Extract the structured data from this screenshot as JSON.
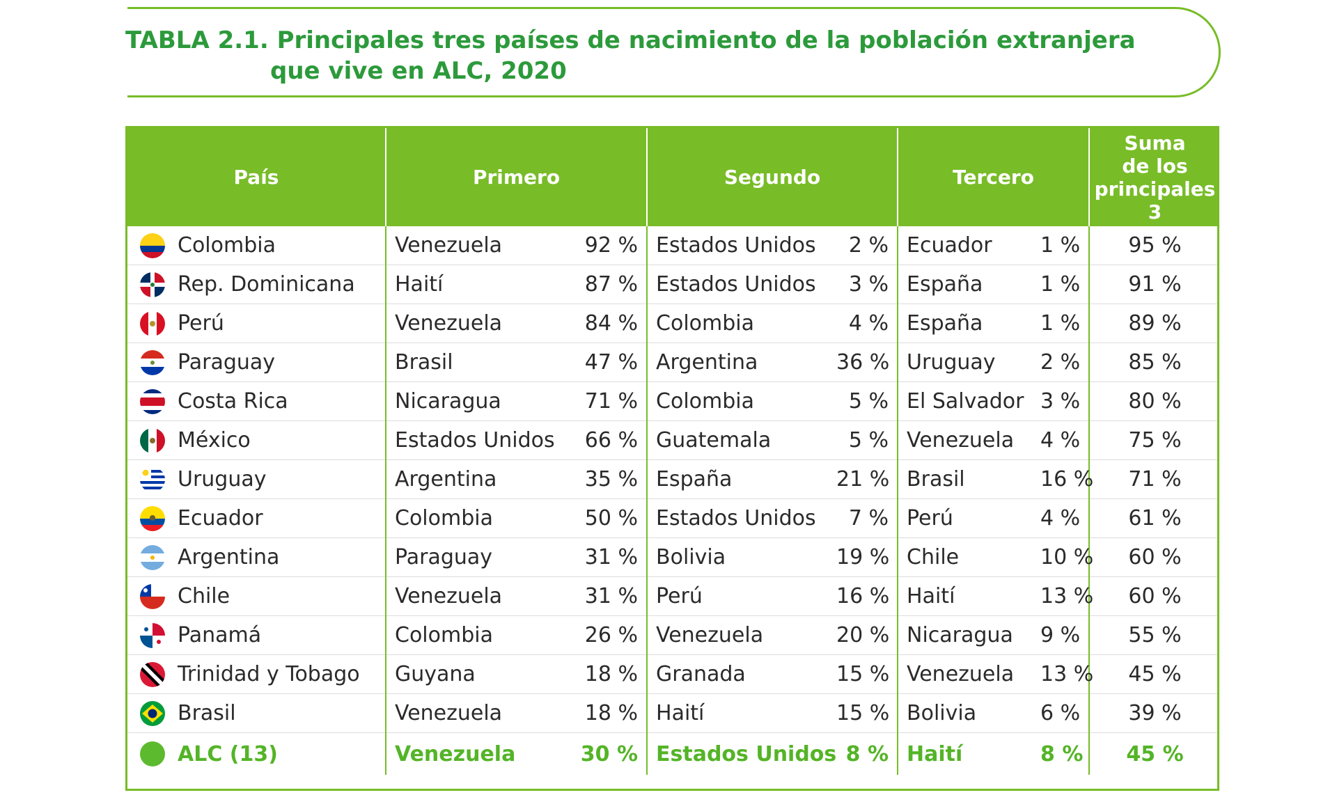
{
  "title": {
    "line1": "TABLA 2.1. Principales tres países de nacimiento de la población extranjera",
    "line2": "que vive en ALC, 2020"
  },
  "table": {
    "headers": {
      "country": "País",
      "first": "Primero",
      "second": "Segundo",
      "third": "Tercero",
      "sum": [
        "Suma",
        "de los",
        "principales",
        "3"
      ]
    },
    "rows": [
      {
        "country": "Colombia",
        "flag": "colombia-flag-icon",
        "c1": "Venezuela",
        "p1": "92 %",
        "c2": "Estados Unidos",
        "p2": "2 %",
        "c3": "Ecuador",
        "p3": "1 %",
        "sum": "95 %"
      },
      {
        "country": "Rep. Dominicana",
        "flag": "dominican-republic-flag-icon",
        "c1": "Haití",
        "p1": "87 %",
        "c2": "Estados Unidos",
        "p2": "3 %",
        "c3": "España",
        "p3": "1 %",
        "sum": "91 %"
      },
      {
        "country": "Perú",
        "flag": "peru-flag-icon",
        "c1": "Venezuela",
        "p1": "84 %",
        "c2": "Colombia",
        "p2": "4 %",
        "c3": "España",
        "p3": "1 %",
        "sum": "89 %"
      },
      {
        "country": "Paraguay",
        "flag": "paraguay-flag-icon",
        "c1": "Brasil",
        "p1": "47 %",
        "c2": "Argentina",
        "p2": "36 %",
        "c3": "Uruguay",
        "p3": "2 %",
        "sum": "85 %"
      },
      {
        "country": "Costa Rica",
        "flag": "costa-rica-flag-icon",
        "c1": "Nicaragua",
        "p1": "71 %",
        "c2": "Colombia",
        "p2": "5 %",
        "c3": "El Salvador",
        "p3": "3 %",
        "sum": "80 %"
      },
      {
        "country": "México",
        "flag": "mexico-flag-icon",
        "c1": "Estados Unidos",
        "p1": "66 %",
        "c2": "Guatemala",
        "p2": "5 %",
        "c3": "Venezuela",
        "p3": "4 %",
        "sum": "75 %"
      },
      {
        "country": "Uruguay",
        "flag": "uruguay-flag-icon",
        "c1": "Argentina",
        "p1": "35 %",
        "c2": "España",
        "p2": "21 %",
        "c3": "Brasil",
        "p3": "16 %",
        "sum": "71 %"
      },
      {
        "country": "Ecuador",
        "flag": "ecuador-flag-icon",
        "c1": "Colombia",
        "p1": "50 %",
        "c2": "Estados Unidos",
        "p2": "7 %",
        "c3": "Perú",
        "p3": "4 %",
        "sum": "61 %"
      },
      {
        "country": "Argentina",
        "flag": "argentina-flag-icon",
        "c1": "Paraguay",
        "p1": "31 %",
        "c2": "Bolivia",
        "p2": "19 %",
        "c3": "Chile",
        "p3": "10 %",
        "sum": "60 %"
      },
      {
        "country": "Chile",
        "flag": "chile-flag-icon",
        "c1": "Venezuela",
        "p1": "31 %",
        "c2": "Perú",
        "p2": "16 %",
        "c3": "Haití",
        "p3": "13 %",
        "sum": "60 %"
      },
      {
        "country": "Panamá",
        "flag": "panama-flag-icon",
        "c1": "Colombia",
        "p1": "26 %",
        "c2": "Venezuela",
        "p2": "20 %",
        "c3": "Nicaragua",
        "p3": "9 %",
        "sum": "55 %"
      },
      {
        "country": "Trinidad y Tobago",
        "flag": "trinidad-tobago-flag-icon",
        "c1": "Guyana",
        "p1": "18 %",
        "c2": "Granada",
        "p2": "15 %",
        "c3": "Venezuela",
        "p3": "13 %",
        "sum": "45 %"
      },
      {
        "country": "Brasil",
        "flag": "brazil-flag-icon",
        "c1": "Venezuela",
        "p1": "18 %",
        "c2": "Haití",
        "p2": "15 %",
        "c3": "Bolivia",
        "p3": "6 %",
        "sum": "39 %"
      },
      {
        "country": "ALC (13)",
        "flag": "alc-green-dot-icon",
        "c1": "Venezuela",
        "p1": "30 %",
        "c2": "Estados Unidos",
        "p2": "8 %",
        "c3": "Haití",
        "p3": "8 %",
        "sum": "45 %"
      }
    ]
  },
  "colors": {
    "accent_green": "#78bc27",
    "title_green": "#2c9a3b",
    "total_row_green": "#54b427"
  }
}
